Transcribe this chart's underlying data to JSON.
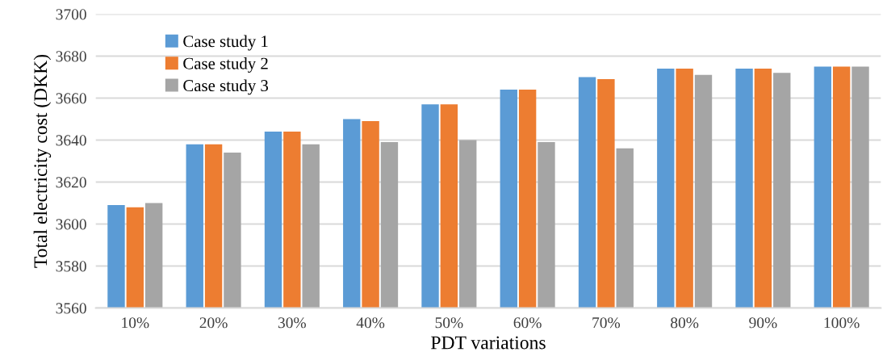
{
  "chart_data": {
    "type": "bar",
    "xlabel": "PDT variations",
    "ylabel": "Total electricity cost (DKK)",
    "categories": [
      "10%",
      "20%",
      "30%",
      "40%",
      "50%",
      "60%",
      "70%",
      "80%",
      "90%",
      "100%"
    ],
    "series": [
      {
        "name": "Case study 1",
        "color": "#5b9bd5",
        "values": [
          3609,
          3638,
          3644,
          3650,
          3657,
          3664,
          3670,
          3674,
          3674,
          3675
        ]
      },
      {
        "name": "Case study 2",
        "color": "#ed7d31",
        "values": [
          3608,
          3638,
          3644,
          3649,
          3657,
          3664,
          3669,
          3674,
          3674,
          3675
        ]
      },
      {
        "name": "Case study 3",
        "color": "#a5a5a5",
        "values": [
          3610,
          3634,
          3638,
          3639,
          3640,
          3639,
          3636,
          3671,
          3672,
          3675
        ]
      }
    ],
    "ylim": [
      3560,
      3700
    ],
    "yticks": [
      3560,
      3580,
      3600,
      3620,
      3640,
      3660,
      3680,
      3700
    ],
    "grid": "y",
    "legend": "top left"
  }
}
